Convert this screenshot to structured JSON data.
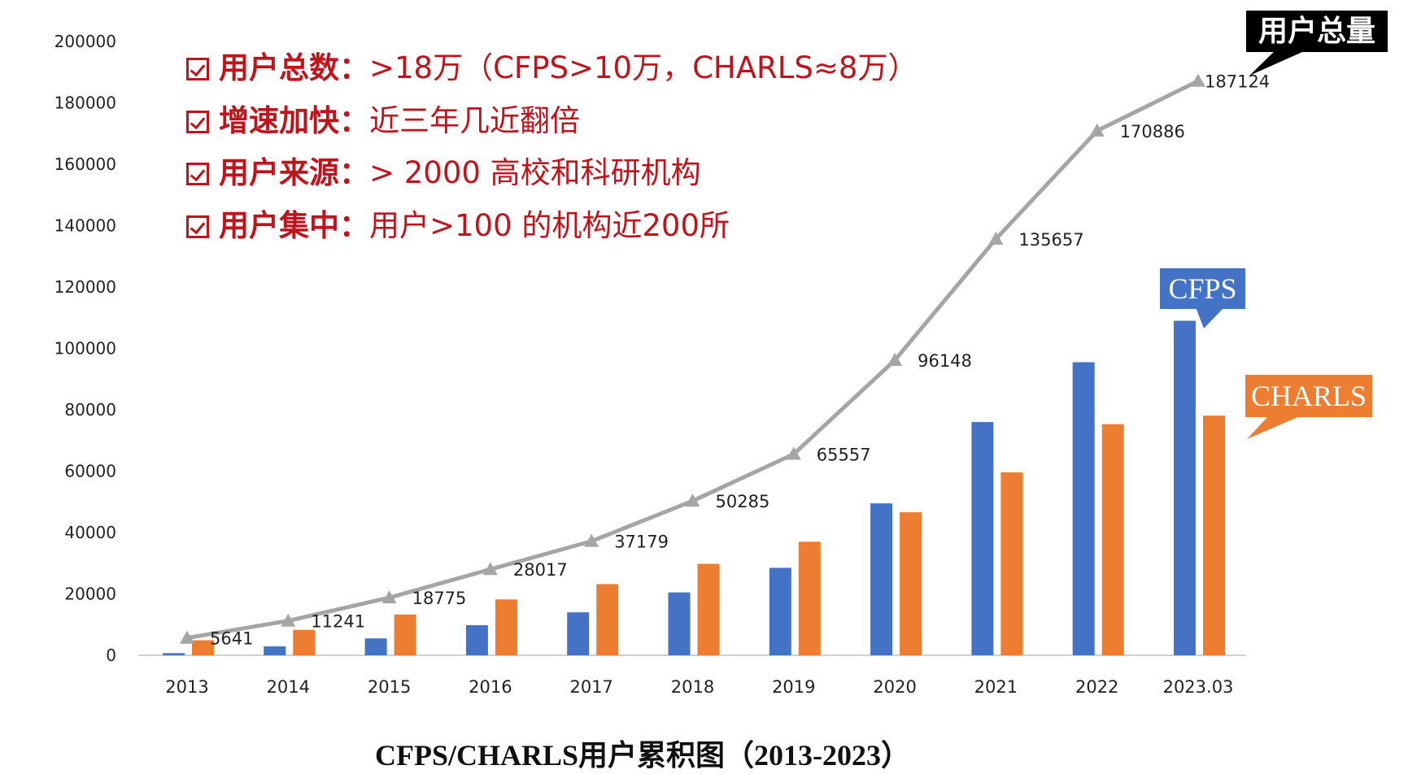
{
  "chart_data": {
    "type": "bar",
    "title": "CFPS/CHARLS用户累积图（2013-2023）",
    "categories": [
      "2013",
      "2014",
      "2015",
      "2016",
      "2017",
      "2018",
      "2019",
      "2020",
      "2021",
      "2022",
      "2023.03"
    ],
    "ylim": [
      0,
      200000
    ],
    "yticks": [
      0,
      20000,
      40000,
      60000,
      80000,
      100000,
      120000,
      140000,
      160000,
      180000,
      200000
    ],
    "grid": false,
    "series": [
      {
        "name": "CFPS",
        "kind": "bar",
        "color": "#4472c4",
        "values": [
          700,
          2900,
          5500,
          9800,
          14000,
          20500,
          28500,
          49500,
          76000,
          95500,
          109000
        ]
      },
      {
        "name": "CHARLS",
        "kind": "bar",
        "color": "#ed7d31",
        "values": [
          4900,
          8300,
          13300,
          18200,
          23200,
          29800,
          37000,
          46600,
          59600,
          75300,
          78100
        ]
      },
      {
        "name": "用户总量",
        "kind": "line",
        "color": "#a5a5a5",
        "marker": "triangle",
        "values": [
          5641,
          11241,
          18775,
          28017,
          37179,
          50285,
          65557,
          96148,
          135657,
          170886,
          187124
        ]
      }
    ],
    "data_labels": [
      "5641",
      "11241",
      "18775",
      "28017",
      "37179",
      "50285",
      "65557",
      "96148",
      "135657",
      "170886",
      "187124"
    ]
  },
  "callouts": {
    "total": {
      "text": "用户总量",
      "color": "#000000"
    },
    "cfps": {
      "text": "CFPS",
      "color": "#4472c4"
    },
    "charls": {
      "text": "CHARLS",
      "color": "#ed7d31"
    }
  },
  "notes": [
    {
      "label": "用户总数：",
      "text": ">18万（CFPS>10万，CHARLS≈8万）"
    },
    {
      "label": "增速加快：",
      "text": "近三年几近翻倍"
    },
    {
      "label": "用户来源：",
      "text": "> 2000 高校和科研机构"
    },
    {
      "label": "用户集中：",
      "text": "用户>100 的机构近200所"
    }
  ],
  "accent_color": "#c0141c"
}
